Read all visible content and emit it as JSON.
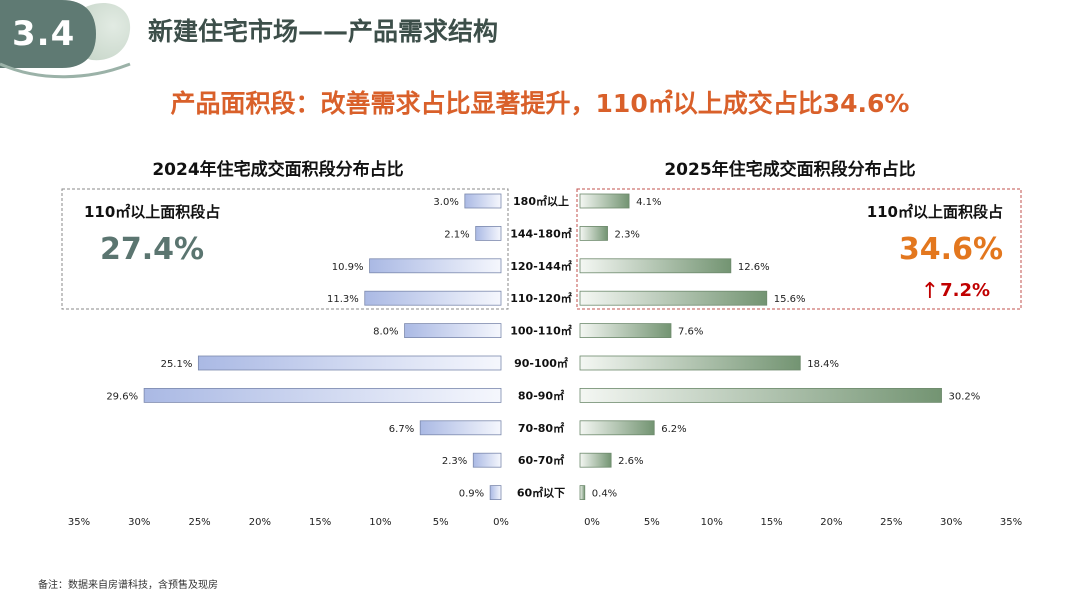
{
  "section_number": "3.4",
  "page_title": "新建住宅市场——产品需求结构",
  "headline": "产品面积段：改善需求占比显著提升，110㎡以上成交占比34.6%",
  "footnote": "备注：数据来自房谱科技，含预售及现房",
  "colors": {
    "accent_orange": "#d9602a",
    "left_bar": "#b4c1e6",
    "right_bar": "#7d9c7c",
    "left_big": "#5b7570",
    "up_red": "#c00000"
  },
  "chart_data": [
    {
      "type": "bar",
      "orientation": "horizontal",
      "title": "2024年住宅成交面积段分布占比",
      "categories": [
        "180㎡以上",
        "144-180㎡",
        "120-144㎡",
        "110-120㎡",
        "100-110㎡",
        "90-100㎡",
        "80-90㎡",
        "70-80㎡",
        "60-70㎡",
        "60㎡以下"
      ],
      "values": [
        3.0,
        2.1,
        10.9,
        11.3,
        8.0,
        25.1,
        29.6,
        6.7,
        2.3,
        0.9
      ],
      "value_labels": [
        "3.0%",
        "2.1%",
        "10.9%",
        "11.3%",
        "8.0%",
        "25.1%",
        "29.6%",
        "6.7%",
        "2.3%",
        "0.9%"
      ],
      "xlim": [
        0,
        35
      ],
      "x_ticks": [
        "35%",
        "30%",
        "25%",
        "20%",
        "15%",
        "10%",
        "5%",
        "0%"
      ],
      "x_direction": "reversed",
      "callout": {
        "label": "110㎡以上面积段占",
        "value": "27.4%"
      }
    },
    {
      "type": "bar",
      "orientation": "horizontal",
      "title": "2025年住宅成交面积段分布占比",
      "categories": [
        "180㎡以上",
        "144-180㎡",
        "120-144㎡",
        "110-120㎡",
        "100-110㎡",
        "90-100㎡",
        "80-90㎡",
        "70-80㎡",
        "60-70㎡",
        "60㎡以下"
      ],
      "values": [
        4.1,
        2.3,
        12.6,
        15.6,
        7.6,
        18.4,
        30.2,
        6.2,
        2.6,
        0.4
      ],
      "value_labels": [
        "4.1%",
        "2.3%",
        "12.6%",
        "15.6%",
        "7.6%",
        "18.4%",
        "30.2%",
        "6.2%",
        "2.6%",
        "0.4%"
      ],
      "xlim": [
        0,
        35
      ],
      "x_ticks": [
        "0%",
        "5%",
        "10%",
        "15%",
        "20%",
        "25%",
        "30%",
        "35%"
      ],
      "callout": {
        "label": "110㎡以上面积段占",
        "value": "34.6%",
        "change": "7.2%",
        "change_arrow": "↑"
      }
    }
  ]
}
